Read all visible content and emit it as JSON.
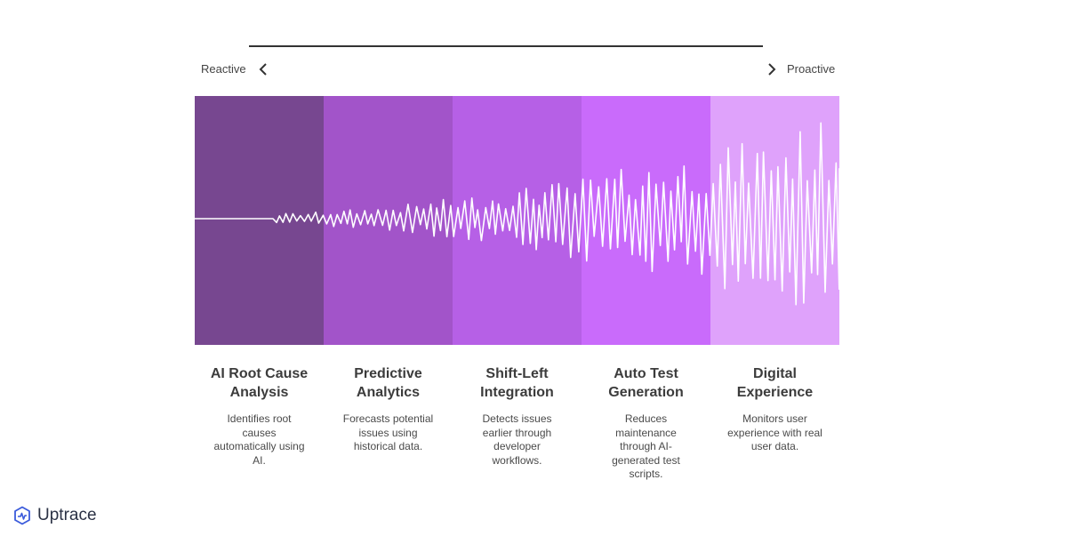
{
  "scale": {
    "left_label": "Reactive",
    "right_label": "Proactive"
  },
  "colors": {
    "stage1": "#774790",
    "stage2": "#a254c9",
    "stage3": "#b660e6",
    "stage4": "#c96bfb",
    "stage5": "#dfa2fb",
    "wave": "#ffffff"
  },
  "stages": [
    {
      "title": "AI Root Cause Analysis",
      "description": "Identifies root causes automatically using AI."
    },
    {
      "title": "Predictive Analytics",
      "description": "Forecasts potential issues using historical data."
    },
    {
      "title": "Shift-Left Integration",
      "description": "Detects issues earlier through developer workflows."
    },
    {
      "title": "Auto Test Generation",
      "description": "Reduces maintenance through AI-generated test scripts."
    },
    {
      "title": "Digital Experience",
      "description": "Monitors user experience with real user data."
    }
  ],
  "brand": {
    "name": "Uptrace",
    "icon": "uptrace-logo-icon"
  }
}
